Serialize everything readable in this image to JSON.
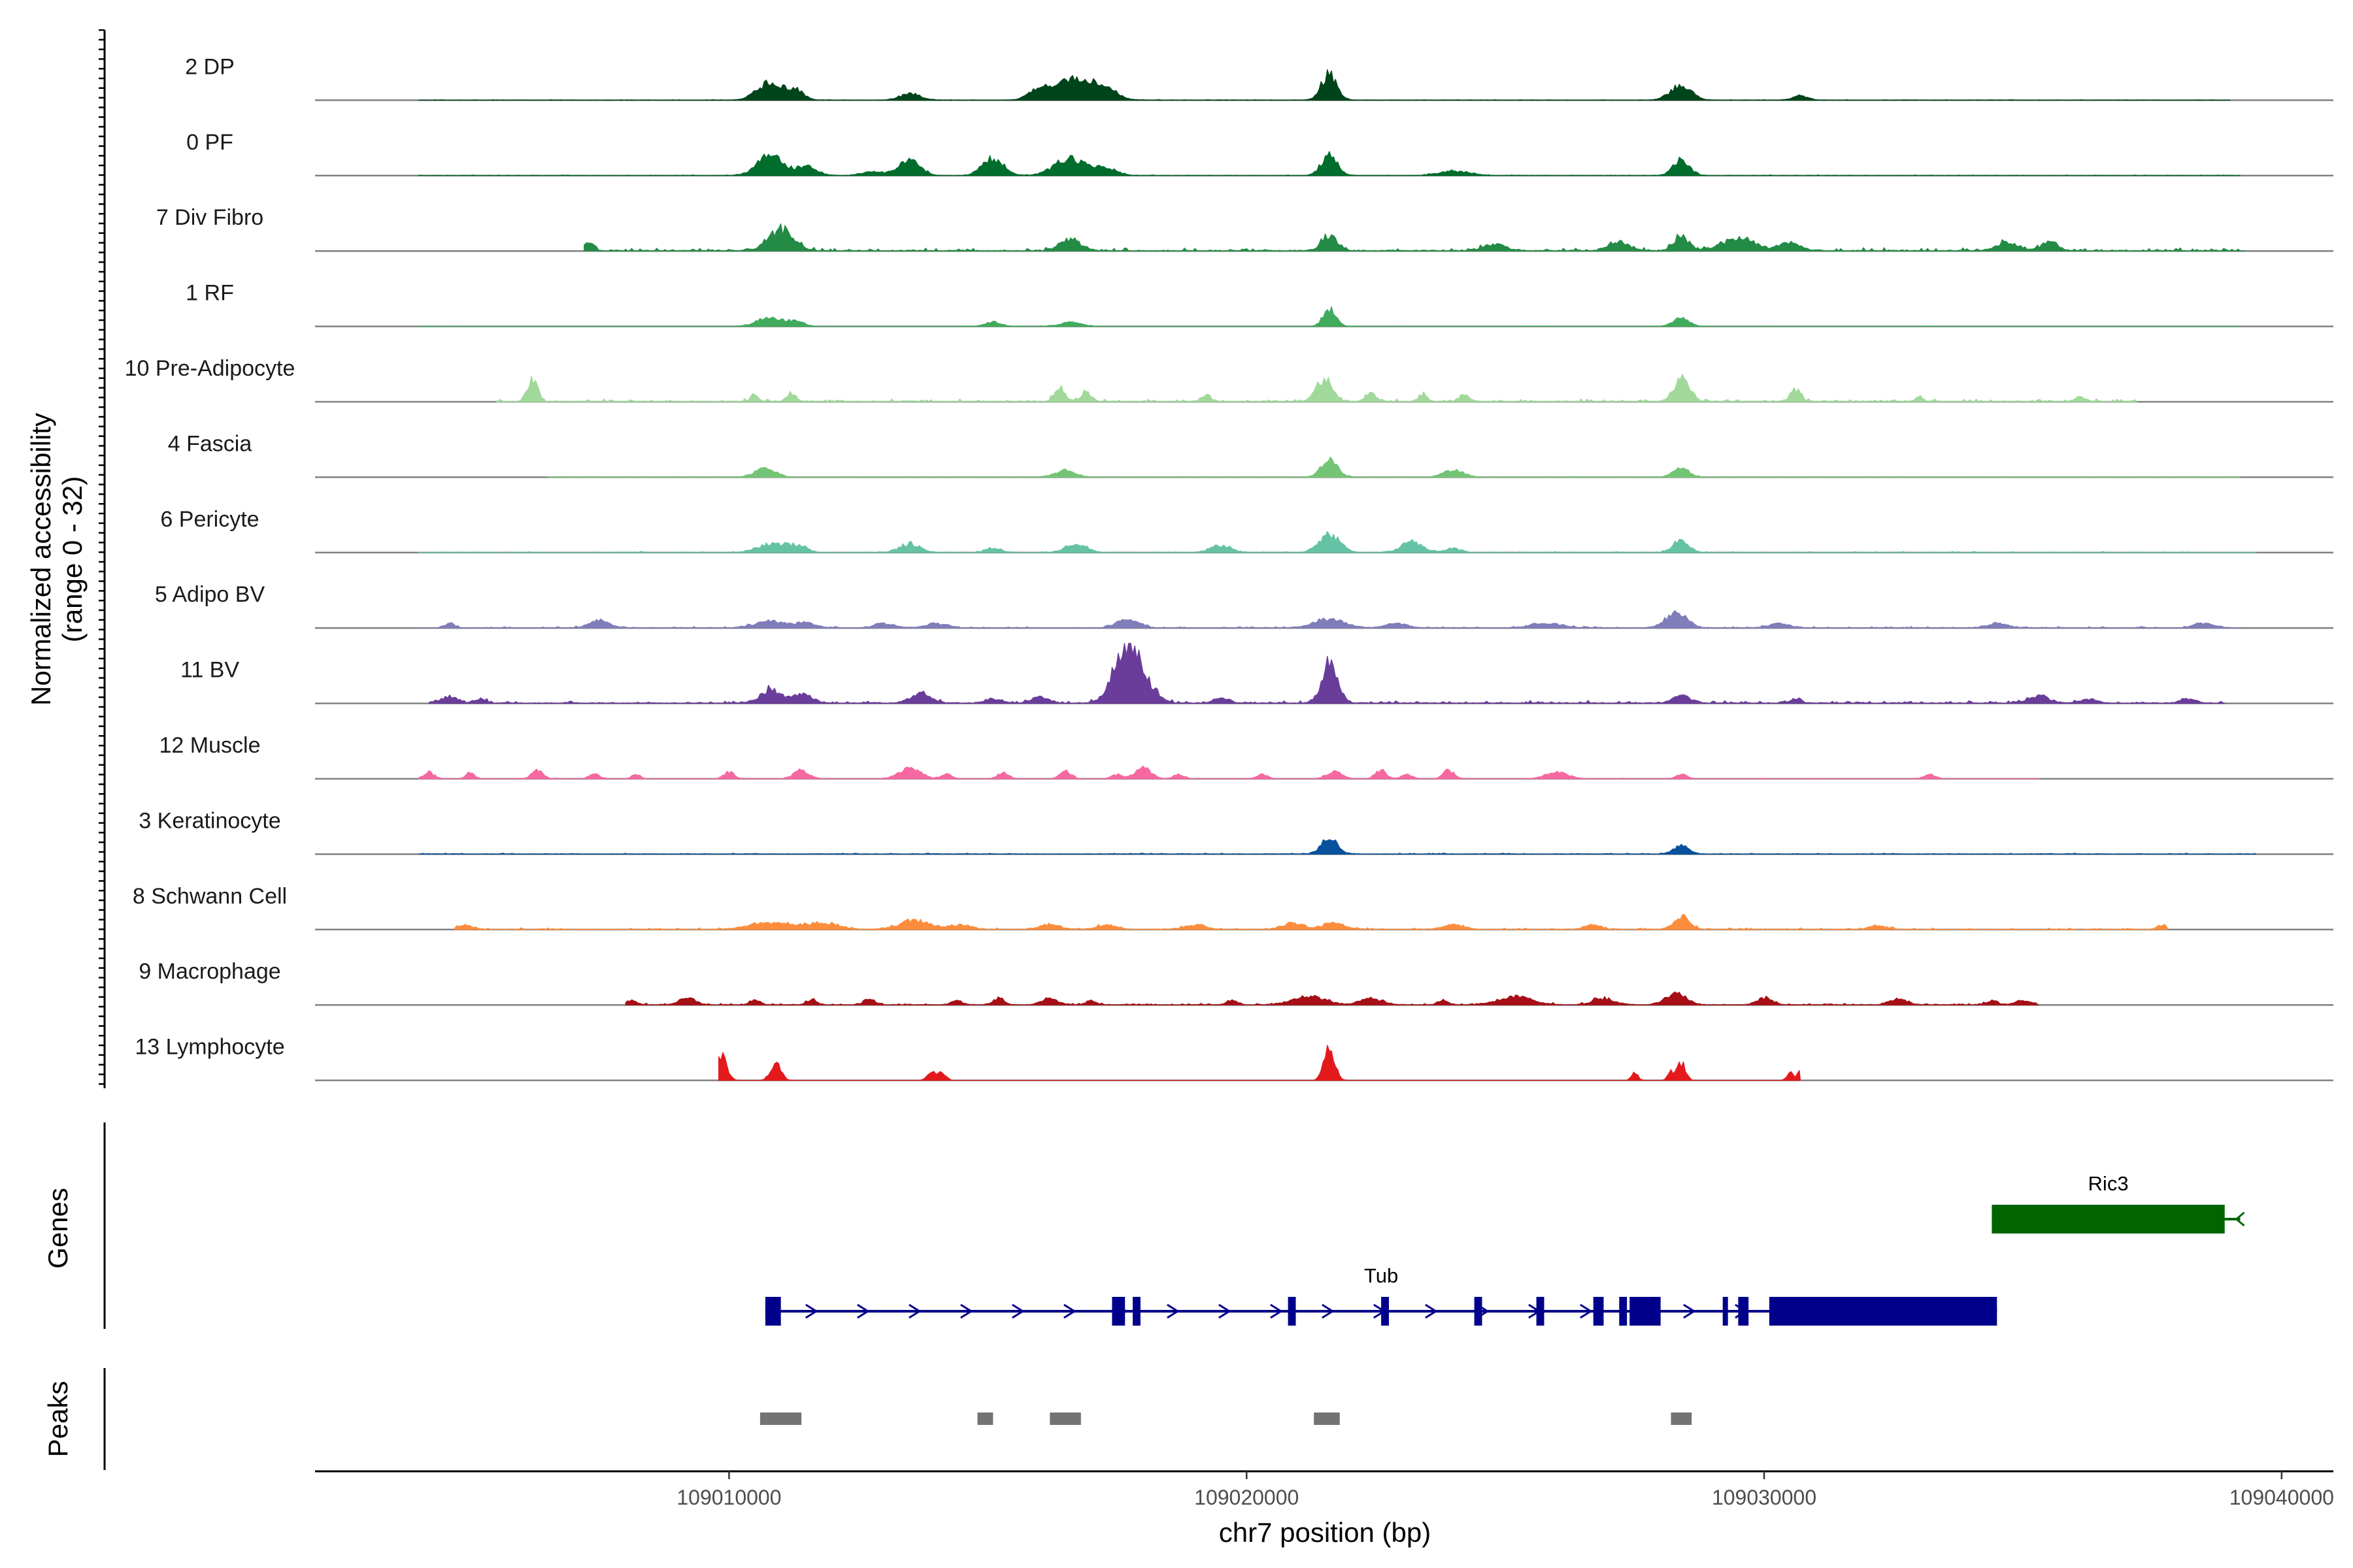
{
  "chart_data": {
    "type": "area",
    "title": "",
    "xlabel": "chr7 position (bp)",
    "ylabel": "Normalized accessibility",
    "ylabel_sub": "(range 0 - 32)",
    "y_range": [
      0,
      32
    ],
    "x_range": [
      109002000,
      109041000
    ],
    "x_ticks": [
      {
        "value": 109010000,
        "label": "109010000"
      },
      {
        "value": 109020000,
        "label": "109020000"
      },
      {
        "value": 109030000,
        "label": "109030000"
      },
      {
        "value": 109040000,
        "label": "109040000"
      }
    ],
    "tracks": [
      {
        "name": "2 DP",
        "color": "#00441b",
        "start": 109004000,
        "end": 109039000,
        "noise": 0.04,
        "peaks": [
          [
            109010800,
            4,
            250
          ],
          [
            109011300,
            2,
            150
          ],
          [
            109013500,
            1.5,
            200
          ],
          [
            109016000,
            2,
            200
          ],
          [
            109016700,
            5,
            400
          ],
          [
            109017300,
            1.5,
            200
          ],
          [
            109021600,
            6,
            150
          ],
          [
            109028400,
            3.5,
            200
          ],
          [
            109030700,
            1,
            150
          ]
        ]
      },
      {
        "name": "0 PF",
        "color": "#006d2c",
        "start": 109004000,
        "end": 109039200,
        "noise": 0.05,
        "peaks": [
          [
            109010800,
            4.5,
            250
          ],
          [
            109011500,
            2,
            200
          ],
          [
            109012800,
            1,
            200
          ],
          [
            109013500,
            3.5,
            200
          ],
          [
            109015100,
            4,
            200
          ],
          [
            109016600,
            4,
            300
          ],
          [
            109017300,
            1.5,
            200
          ],
          [
            109021600,
            5,
            150
          ],
          [
            109024000,
            1,
            300
          ],
          [
            109028400,
            4,
            150
          ]
        ]
      },
      {
        "name": "7 Div Fibro",
        "color": "#238b45",
        "start": 109007200,
        "end": 109039300,
        "noise": 0.22,
        "peaks": [
          [
            109007300,
            2,
            80
          ],
          [
            109011000,
            4.5,
            250
          ],
          [
            109016600,
            2.5,
            200
          ],
          [
            109021600,
            3.5,
            150
          ],
          [
            109024800,
            1.5,
            200
          ],
          [
            109027200,
            2,
            200
          ],
          [
            109028400,
            3,
            150
          ],
          [
            109029500,
            3,
            300
          ],
          [
            109030500,
            2,
            200
          ],
          [
            109034700,
            2,
            200
          ],
          [
            109035500,
            2,
            150
          ]
        ]
      },
      {
        "name": "1 RF",
        "color": "#41ab5d",
        "start": 109004000,
        "end": 109039200,
        "noise": 0.03,
        "peaks": [
          [
            109010800,
            2,
            250
          ],
          [
            109011300,
            1,
            150
          ],
          [
            109015100,
            1,
            150
          ],
          [
            109016600,
            1,
            200
          ],
          [
            109021600,
            4,
            120
          ],
          [
            109028400,
            2,
            150
          ]
        ]
      },
      {
        "name": "10 Pre-Adipocyte",
        "color": "#a1d99b",
        "start": 109005500,
        "end": 109037200,
        "noise": 0.2,
        "peaks": [
          [
            109006200,
            5,
            100
          ],
          [
            109010500,
            1.5,
            80
          ],
          [
            109011200,
            2,
            80
          ],
          [
            109016400,
            3,
            100
          ],
          [
            109016900,
            2,
            100
          ],
          [
            109019200,
            1.5,
            80
          ],
          [
            109021500,
            5,
            150
          ],
          [
            109022400,
            2,
            100
          ],
          [
            109023400,
            1.5,
            80
          ],
          [
            109024200,
            1.5,
            100
          ],
          [
            109028400,
            5,
            150
          ],
          [
            109030600,
            3,
            100
          ],
          [
            109033000,
            1,
            80
          ],
          [
            109036100,
            1,
            100
          ]
        ]
      },
      {
        "name": "4 Fascia",
        "color": "#74c476",
        "start": 109006500,
        "end": 109039200,
        "noise": 0.05,
        "peaks": [
          [
            109010700,
            2,
            200
          ],
          [
            109016500,
            1.5,
            200
          ],
          [
            109021600,
            4,
            150
          ],
          [
            109024000,
            1.5,
            200
          ],
          [
            109028400,
            2,
            150
          ]
        ]
      },
      {
        "name": "6 Pericyte",
        "color": "#66c2a4",
        "start": 109004000,
        "end": 109039500,
        "noise": 0.08,
        "peaks": [
          [
            109010800,
            2,
            250
          ],
          [
            109011300,
            1.5,
            200
          ],
          [
            109013500,
            2,
            200
          ],
          [
            109015100,
            1,
            150
          ],
          [
            109016700,
            2,
            200
          ],
          [
            109019500,
            1.5,
            200
          ],
          [
            109021600,
            4,
            200
          ],
          [
            109023200,
            2.5,
            200
          ],
          [
            109024000,
            1,
            150
          ],
          [
            109028400,
            3,
            150
          ]
        ]
      },
      {
        "name": "5 Adipo BV",
        "color": "#807dba",
        "start": 109004000,
        "end": 109039200,
        "noise": 0.1,
        "peaks": [
          [
            109004600,
            1,
            100
          ],
          [
            109007500,
            1.5,
            200
          ],
          [
            109010800,
            1.5,
            300
          ],
          [
            109011500,
            1,
            200
          ],
          [
            109013000,
            1,
            200
          ],
          [
            109014000,
            1,
            200
          ],
          [
            109017700,
            2,
            200
          ],
          [
            109021600,
            2,
            300
          ],
          [
            109022900,
            1,
            200
          ],
          [
            109025800,
            1,
            300
          ],
          [
            109028300,
            3.5,
            200
          ],
          [
            109030300,
            1,
            200
          ],
          [
            109034500,
            1,
            200
          ],
          [
            109038500,
            1,
            200
          ]
        ]
      },
      {
        "name": "11 BV",
        "color": "#6a3d9a",
        "start": 109004200,
        "end": 109038900,
        "noise": 0.2,
        "peaks": [
          [
            109004600,
            1.5,
            150
          ],
          [
            109005200,
            1,
            100
          ],
          [
            109010800,
            3,
            200
          ],
          [
            109011400,
            2,
            200
          ],
          [
            109013700,
            2,
            200
          ],
          [
            109015100,
            1,
            150
          ],
          [
            109016000,
            1.5,
            150
          ],
          [
            109017700,
            14,
            250
          ],
          [
            109018200,
            2,
            150
          ],
          [
            109019500,
            1,
            150
          ],
          [
            109021600,
            9,
            150
          ],
          [
            109028400,
            2,
            150
          ],
          [
            109030600,
            1,
            100
          ],
          [
            109035300,
            1.5,
            200
          ],
          [
            109036300,
            1,
            150
          ],
          [
            109038200,
            1,
            150
          ]
        ]
      },
      {
        "name": "12 Muscle",
        "color": "#f768a1",
        "start": 109004000,
        "end": 109035300,
        "noise": 0.05,
        "peaks": [
          [
            109004200,
            1.5,
            100
          ],
          [
            109005000,
            1.5,
            80
          ],
          [
            109006300,
            2,
            100
          ],
          [
            109007400,
            1,
            100
          ],
          [
            109008200,
            1,
            80
          ],
          [
            109010000,
            1.5,
            100
          ],
          [
            109011400,
            2,
            150
          ],
          [
            109013500,
            2.5,
            200
          ],
          [
            109014200,
            1,
            100
          ],
          [
            109015300,
            1.5,
            100
          ],
          [
            109016500,
            2,
            100
          ],
          [
            109017500,
            1,
            100
          ],
          [
            109018000,
            2.5,
            150
          ],
          [
            109018700,
            1,
            100
          ],
          [
            109020300,
            1,
            100
          ],
          [
            109021700,
            1.5,
            150
          ],
          [
            109022600,
            2,
            100
          ],
          [
            109023100,
            1,
            100
          ],
          [
            109023900,
            2,
            100
          ],
          [
            109026000,
            1.5,
            200
          ],
          [
            109028400,
            1,
            100
          ],
          [
            109033200,
            1,
            100
          ]
        ]
      },
      {
        "name": "3 Keratinocyte",
        "color": "#08519c",
        "start": 109004000,
        "end": 109039500,
        "noise": 0.08,
        "peaks": [
          [
            109021600,
            4,
            150
          ],
          [
            109028400,
            2,
            150
          ]
        ]
      },
      {
        "name": "8 Schwann Cell",
        "color": "#fd8d3c",
        "start": 109004700,
        "end": 109037800,
        "noise": 0.12,
        "peaks": [
          [
            109004900,
            1,
            150
          ],
          [
            109010800,
            1.5,
            400
          ],
          [
            109011800,
            1.5,
            300
          ],
          [
            109013600,
            2,
            300
          ],
          [
            109014500,
            1,
            200
          ],
          [
            109016200,
            1,
            200
          ],
          [
            109017300,
            1,
            200
          ],
          [
            109019000,
            1,
            200
          ],
          [
            109020900,
            1.5,
            200
          ],
          [
            109021700,
            1.5,
            200
          ],
          [
            109024000,
            1,
            200
          ],
          [
            109026700,
            1,
            150
          ],
          [
            109028400,
            3,
            150
          ],
          [
            109032200,
            1,
            150
          ],
          [
            109037700,
            1,
            100
          ]
        ]
      },
      {
        "name": "9 Macrophage",
        "color": "#a50f15",
        "start": 109008000,
        "end": 109035300,
        "noise": 0.12,
        "peaks": [
          [
            109008100,
            1,
            100
          ],
          [
            109009200,
            1.5,
            150
          ],
          [
            109010500,
            1,
            100
          ],
          [
            109011600,
            1,
            100
          ],
          [
            109012700,
            1.5,
            100
          ],
          [
            109014400,
            1,
            100
          ],
          [
            109015200,
            1.5,
            100
          ],
          [
            109016200,
            1.5,
            150
          ],
          [
            109017000,
            1,
            100
          ],
          [
            109019700,
            1,
            100
          ],
          [
            109021200,
            2,
            300
          ],
          [
            109022400,
            1.5,
            200
          ],
          [
            109023800,
            1,
            100
          ],
          [
            109025200,
            2,
            300
          ],
          [
            109026900,
            1.5,
            200
          ],
          [
            109028300,
            2.5,
            200
          ],
          [
            109030000,
            1.5,
            150
          ],
          [
            109032600,
            1.5,
            150
          ],
          [
            109034400,
            1,
            100
          ],
          [
            109035000,
            1,
            150
          ]
        ]
      },
      {
        "name": "13 Lymphocyte",
        "color": "#e31a1c",
        "start": 109009800,
        "end": 109030700,
        "noise": 0,
        "peaks": [
          [
            109009850,
            6,
            100
          ],
          [
            109010900,
            4,
            100
          ],
          [
            109013900,
            2,
            80
          ],
          [
            109014100,
            2,
            80
          ],
          [
            109021600,
            8,
            100
          ],
          [
            109027500,
            2,
            60
          ],
          [
            109028200,
            2,
            60
          ],
          [
            109028400,
            4,
            80
          ],
          [
            109030500,
            2,
            60
          ],
          [
            109030700,
            2,
            60
          ]
        ]
      }
    ],
    "genes": [
      {
        "name": "Ric3",
        "color": "#006400",
        "strand": "-",
        "start": 109034400,
        "end": 109039200,
        "exons": [
          [
            109034400,
            109038900
          ]
        ]
      },
      {
        "name": "Tub",
        "color": "#00008b",
        "strand": "+",
        "start": 109010700,
        "end": 109034500,
        "exons": [
          [
            109010700,
            109011000
          ],
          [
            109017400,
            109017650
          ],
          [
            109017800,
            109017950
          ],
          [
            109020800,
            109020950
          ],
          [
            109022600,
            109022750
          ],
          [
            109024400,
            109024550
          ],
          [
            109025600,
            109025750
          ],
          [
            109026700,
            109026900
          ],
          [
            109027200,
            109027350
          ],
          [
            109027400,
            109028000
          ],
          [
            109029200,
            109029300
          ],
          [
            109029500,
            109029700
          ],
          [
            109030100,
            109034500
          ]
        ]
      }
    ],
    "genes_title": "Genes",
    "peaks_title": "Peaks",
    "peak_regions": [
      [
        109010600,
        109011400
      ],
      [
        109014800,
        109015100
      ],
      [
        109016200,
        109016800
      ],
      [
        109021300,
        109021800
      ],
      [
        109028200,
        109028600
      ]
    ]
  }
}
